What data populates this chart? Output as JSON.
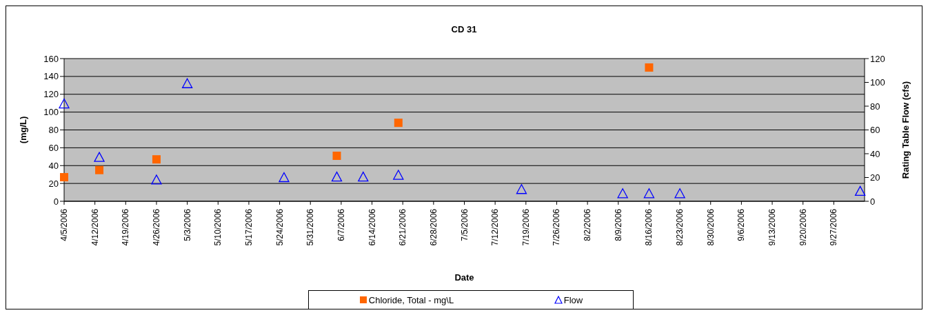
{
  "chart_data": {
    "type": "scatter",
    "title": "CD 31",
    "xlabel": "Date",
    "ylabel": "(mg/L)",
    "y2label": "Rating Table Flow (cfs)",
    "xlim": [
      "2006-04-05",
      "2006-10-04"
    ],
    "xticks": [
      {
        "value": "2006-04-05",
        "label": "4/5/2006"
      },
      {
        "value": "2006-04-12",
        "label": "4/12/2006"
      },
      {
        "value": "2006-04-19",
        "label": "4/19/2006"
      },
      {
        "value": "2006-04-26",
        "label": "4/26/2006"
      },
      {
        "value": "2006-05-03",
        "label": "5/3/2006"
      },
      {
        "value": "2006-05-10",
        "label": "5/10/2006"
      },
      {
        "value": "2006-05-17",
        "label": "5/17/2006"
      },
      {
        "value": "2006-05-24",
        "label": "5/24/2006"
      },
      {
        "value": "2006-05-31",
        "label": "5/31/2006"
      },
      {
        "value": "2006-06-07",
        "label": "6/7/2006"
      },
      {
        "value": "2006-06-14",
        "label": "6/14/2006"
      },
      {
        "value": "2006-06-21",
        "label": "6/21/2006"
      },
      {
        "value": "2006-06-28",
        "label": "6/28/2006"
      },
      {
        "value": "2006-07-05",
        "label": "7/5/2006"
      },
      {
        "value": "2006-07-12",
        "label": "7/12/2006"
      },
      {
        "value": "2006-07-19",
        "label": "7/19/2006"
      },
      {
        "value": "2006-07-26",
        "label": "7/26/2006"
      },
      {
        "value": "2006-08-02",
        "label": "8/2/2006"
      },
      {
        "value": "2006-08-09",
        "label": "8/9/2006"
      },
      {
        "value": "2006-08-16",
        "label": "8/16/2006"
      },
      {
        "value": "2006-08-23",
        "label": "8/23/2006"
      },
      {
        "value": "2006-08-30",
        "label": "8/30/2006"
      },
      {
        "value": "2006-09-06",
        "label": "9/6/2006"
      },
      {
        "value": "2006-09-13",
        "label": "9/13/2006"
      },
      {
        "value": "2006-09-20",
        "label": "9/20/2006"
      },
      {
        "value": "2006-09-27",
        "label": "9/27/2006"
      }
    ],
    "ylim": [
      0,
      160
    ],
    "yticks": [
      0,
      20,
      40,
      60,
      80,
      100,
      120,
      140,
      160
    ],
    "y2lim": [
      0,
      120
    ],
    "y2ticks": [
      0,
      20,
      40,
      60,
      80,
      100,
      120
    ],
    "grid": "y",
    "legend": "bottom",
    "series": [
      {
        "name": "Chloride, Total  - mg\\L",
        "color": "#ff6600",
        "marker": "square",
        "x": [
          "2006-04-05",
          "2006-04-13",
          "2006-04-26",
          "2006-06-06",
          "2006-06-20",
          "2006-08-16"
        ],
        "values": [
          27,
          35,
          47,
          51,
          88,
          150
        ]
      },
      {
        "name": "Flow",
        "color": "#0000ff",
        "marker": "triangle",
        "axis": "y2",
        "x": [
          "2006-04-05",
          "2006-04-13",
          "2006-04-26",
          "2006-05-03",
          "2006-05-25",
          "2006-06-06",
          "2006-06-12",
          "2006-06-20",
          "2006-07-18",
          "2006-08-10",
          "2006-08-16",
          "2006-08-23",
          "2006-10-03"
        ],
        "values": [
          82,
          37,
          18,
          99,
          20,
          20.5,
          20.5,
          22,
          10,
          6.5,
          6.5,
          6.5,
          8.5
        ]
      }
    ]
  }
}
